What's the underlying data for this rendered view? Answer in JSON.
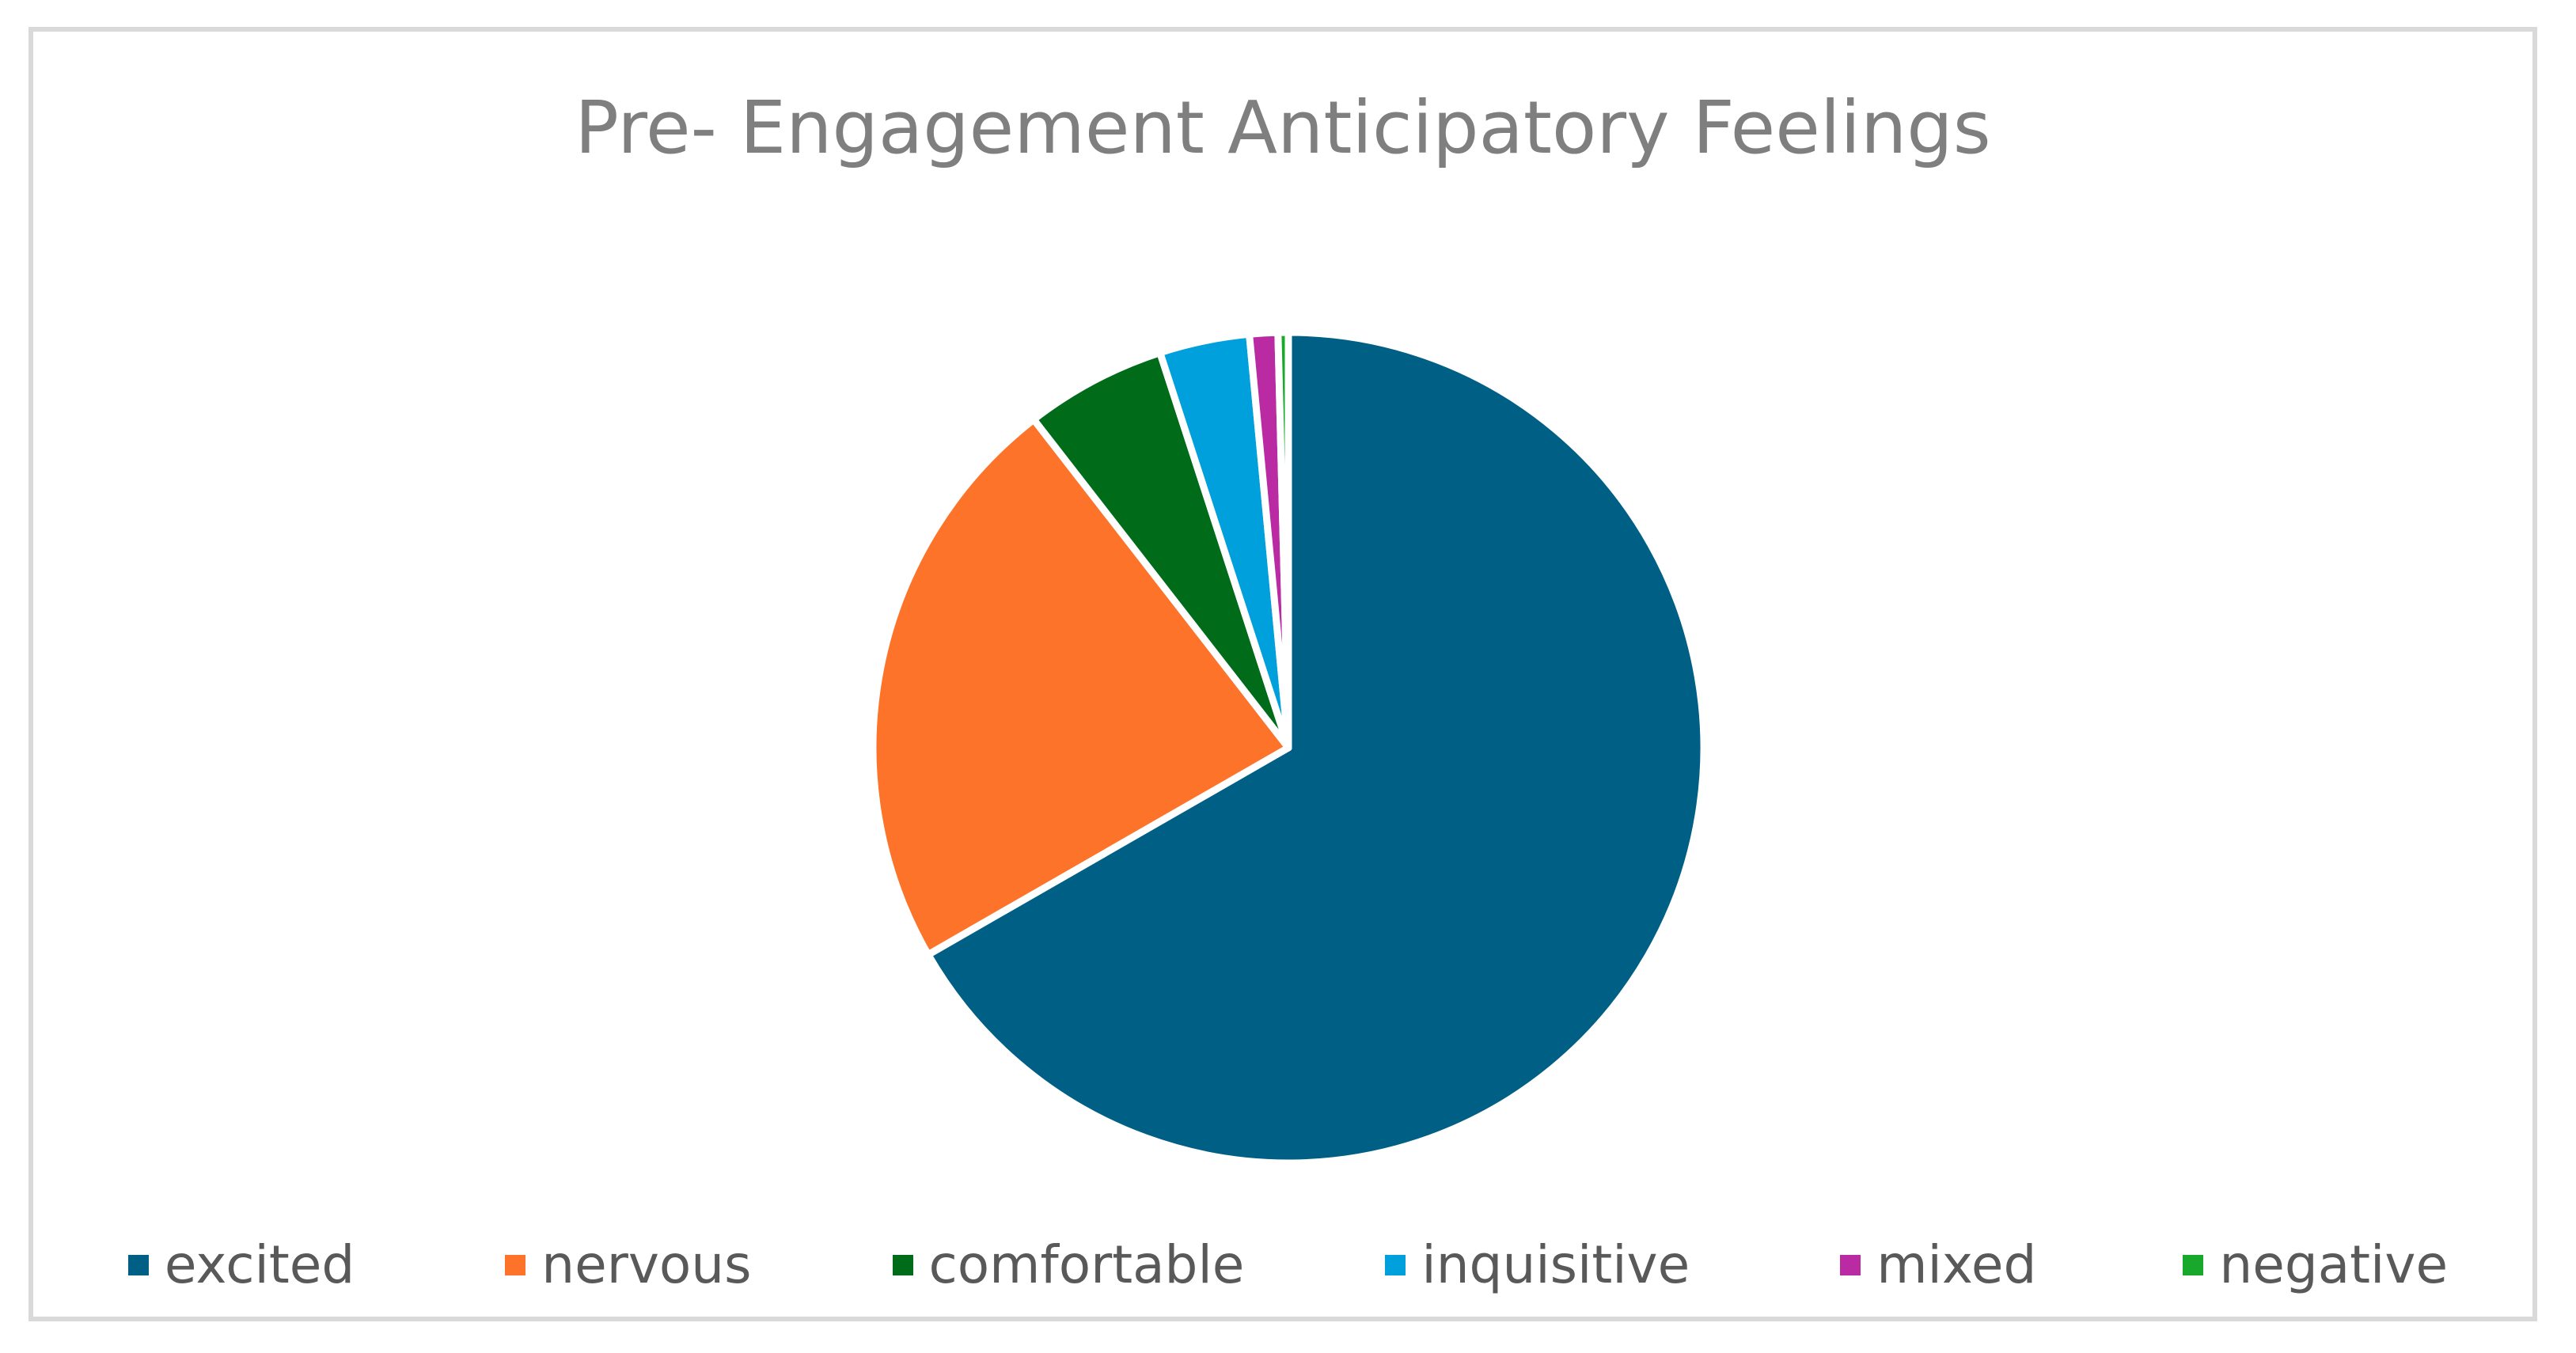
{
  "chart_data": {
    "type": "pie",
    "title": "Pre- Engagement Anticipatory Feelings",
    "legend_position": "bottom",
    "start_angle_deg": 0,
    "direction": "clockwise",
    "slices": [
      {
        "label": "excited",
        "value": 66.7,
        "color": "#005f84"
      },
      {
        "label": "nervous",
        "value": 22.8,
        "color": "#fd7329"
      },
      {
        "label": "comfortable",
        "value": 5.5,
        "color": "#006c1a"
      },
      {
        "label": "inquisitive",
        "value": 3.5,
        "color": "#00a0dd"
      },
      {
        "label": "mixed",
        "value": 1.1,
        "color": "#b92aa3"
      },
      {
        "label": "negative",
        "value": 0.4,
        "color": "#17a82c"
      }
    ]
  }
}
